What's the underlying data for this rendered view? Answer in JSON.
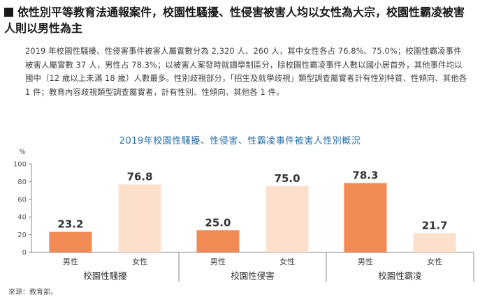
{
  "heading": "依性別平等教育法通報案件，校園性騷擾、性侵害被害人均以女性為大宗，校園性霸凌被害人則以男性為主",
  "paragraph": "2019 年校園性騷擾、性侵害事件被害人屬實數分為 2,320 人、260 人，其中女性各占 76.8%、75.0%；校園性霸凌事件被害人屬實數 37 人，男性占 78.3%；以被害人案發時就讀學制區分，除校園性霸凌事件人數以國小居首外，其他事件均以國中（12 歲以上未滿 18 歲）人數最多。性別歧視部分，「招生及就學歧視」類型調查屬實者計有性別特質、性傾向、其他各 1 件；教育內容歧視類型調查屬實者，計有性別、性傾向、其他各 1 件。",
  "source": "來源：教育部。",
  "colors": {
    "male": "#f28a55",
    "female": "#fde0cc",
    "title": "#2b6fa8"
  },
  "chart_data": {
    "type": "bar",
    "title": "2019年校園性騷擾、性侵害、性霸凌事件被害人性別概況",
    "ylabel": "%",
    "ylim": [
      0,
      100
    ],
    "yticks": [
      0,
      20,
      40,
      60,
      80,
      100
    ],
    "grid": false,
    "groups": [
      {
        "name": "校園性騷擾",
        "bars": [
          {
            "label": "男性",
            "value": 23.2
          },
          {
            "label": "女性",
            "value": 76.8
          }
        ]
      },
      {
        "name": "校園性侵害",
        "bars": [
          {
            "label": "男性",
            "value": 25.0
          },
          {
            "label": "女性",
            "value": 75.0
          }
        ]
      },
      {
        "name": "校園性霸凌",
        "bars": [
          {
            "label": "男性",
            "value": 78.3
          },
          {
            "label": "女性",
            "value": 21.7
          }
        ]
      }
    ]
  }
}
